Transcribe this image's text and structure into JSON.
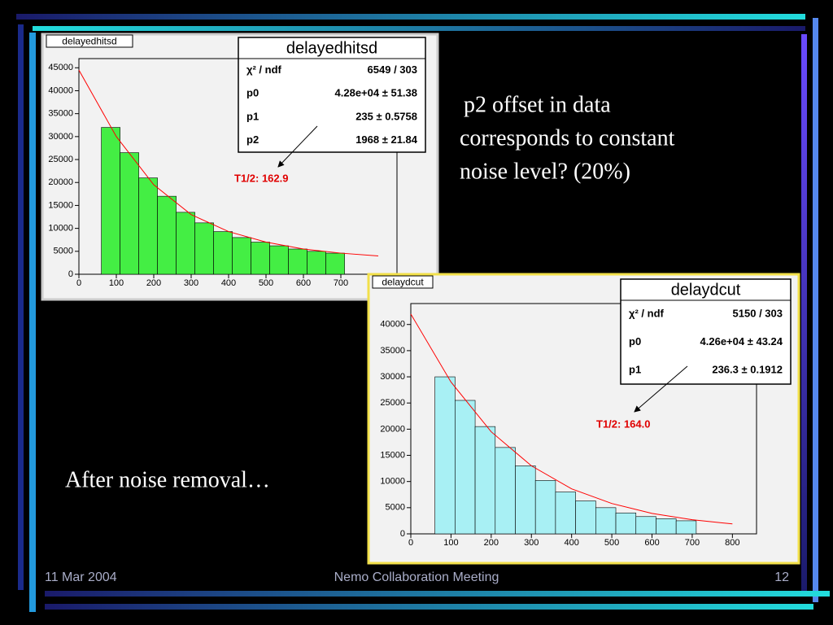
{
  "slide": {
    "text_right": [
      "p2 offset in data",
      "corresponds to constant",
      "noise level? (20%)"
    ],
    "text_left": "After noise removal…",
    "footer": {
      "date": "11 Mar 2004",
      "meeting": "Nemo Collaboration Meeting",
      "page": "12"
    }
  },
  "chart_data": [
    {
      "type": "histogram",
      "title": "delayedhitsd",
      "bins": [
        60,
        110,
        160,
        210,
        260,
        310,
        360,
        410,
        460,
        510,
        560,
        610,
        660,
        710
      ],
      "values": [
        32000,
        26500,
        21000,
        17000,
        13500,
        11200,
        9300,
        8000,
        7000,
        6200,
        5500,
        5000,
        4600
      ],
      "color": "#44ee44",
      "xlim": [
        0,
        850
      ],
      "ylim": [
        0,
        47000
      ],
      "xticks": [
        0,
        100,
        200,
        300,
        400,
        500,
        600,
        700
      ],
      "yticks": [
        0,
        5000,
        10000,
        15000,
        20000,
        25000,
        30000,
        35000,
        40000,
        45000
      ],
      "fit": {
        "color": "#ff0000",
        "x": [
          0,
          100,
          200,
          300,
          400,
          500,
          600,
          700,
          800
        ],
        "values": [
          44500,
          30000,
          19500,
          13000,
          9300,
          7000,
          5500,
          4600,
          4000
        ]
      },
      "stats": {
        "title": "delayedhitsd",
        "rows": [
          [
            "χ² / ndf",
            "6549 / 303"
          ],
          [
            "p0",
            "4.28e+04 ± 51.38"
          ],
          [
            "p1",
            "235 ± 0.5758"
          ],
          [
            "p2",
            "1968 ± 21.84"
          ]
        ]
      },
      "annotation": "T1/2: 162.9"
    },
    {
      "type": "histogram",
      "title": "delaydcut",
      "bins": [
        60,
        110,
        160,
        210,
        260,
        310,
        360,
        410,
        460,
        510,
        560,
        610,
        660,
        710
      ],
      "values": [
        30000,
        25500,
        20500,
        16500,
        13000,
        10200,
        8000,
        6300,
        5000,
        4000,
        3300,
        2900,
        2500
      ],
      "color": "#a8f0f4",
      "xlim": [
        0,
        860
      ],
      "ylim": [
        0,
        44000
      ],
      "xticks": [
        0,
        100,
        200,
        300,
        400,
        500,
        600,
        700,
        800
      ],
      "yticks": [
        0,
        5000,
        10000,
        15000,
        20000,
        25000,
        30000,
        35000,
        40000
      ],
      "fit": {
        "color": "#ff0000",
        "x": [
          0,
          100,
          200,
          300,
          400,
          500,
          600,
          700,
          800
        ],
        "values": [
          42000,
          29000,
          19500,
          13000,
          8600,
          5800,
          3900,
          2700,
          1900
        ]
      },
      "stats": {
        "title": "delaydcut",
        "rows": [
          [
            "χ² / ndf",
            "5150 / 303"
          ],
          [
            "p0",
            "4.26e+04 ± 43.24"
          ],
          [
            "p1",
            "236.3 ± 0.1912"
          ]
        ]
      },
      "annotation": "T1/2: 164.0"
    }
  ]
}
